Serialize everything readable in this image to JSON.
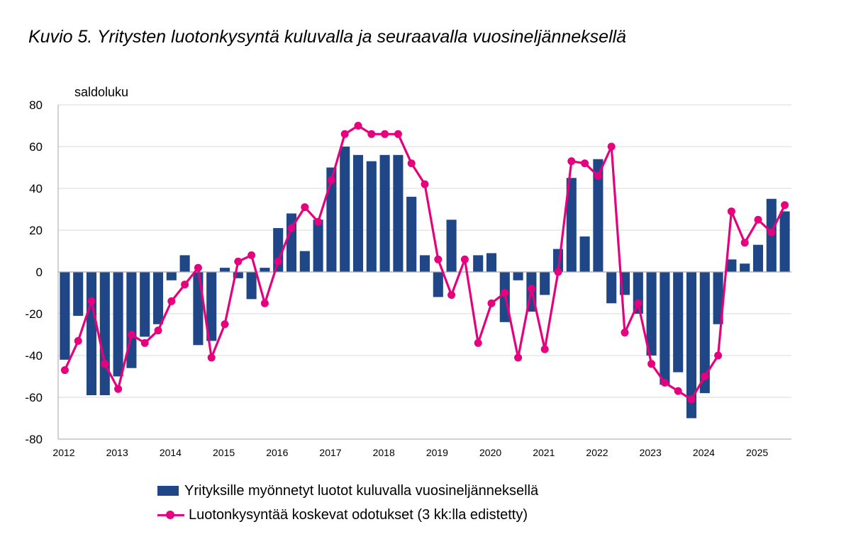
{
  "title": "Kuvio 5. Yritysten luotonkysyntä kuluvalla ja seuraavalla vuosineljänneksellä",
  "colors": {
    "bars": "#1f4788",
    "line": "#e6007e",
    "grid": "#d9d9d9",
    "axis": "#a6a6a6"
  },
  "chart_data": {
    "type": "bar",
    "title": "Kuvio 5. Yritysten luotonkysyntä kuluvalla ja seuraavalla vuosineljänneksellä",
    "ylabel": "saldoluku",
    "xlabel": "",
    "ylim": [
      -80,
      80
    ],
    "yticks": [
      80,
      60,
      40,
      20,
      0,
      -20,
      -40,
      -60,
      -80
    ],
    "year_labels": [
      "2012",
      "2013",
      "2014",
      "2015",
      "2016",
      "2017",
      "2018",
      "2019",
      "2020",
      "2021",
      "2022",
      "2023",
      "2024",
      "2025"
    ],
    "grid": true,
    "legend_position": "bottom",
    "series": [
      {
        "name": "Yrityksille myönnetyt luotot kuluvalla vuosineljänneksellä",
        "type": "bar",
        "values": [
          -42,
          -21,
          -59,
          -59,
          -50,
          -46,
          -31,
          -25,
          -4,
          8,
          -35,
          -33,
          2,
          -3,
          -13,
          2,
          21,
          28,
          10,
          25,
          50,
          60,
          56,
          53,
          56,
          56,
          36,
          8,
          -12,
          25,
          0,
          8,
          9,
          -24,
          -4,
          -19,
          -11,
          11,
          45,
          17,
          54,
          -15,
          -11,
          -20,
          -40,
          -54,
          -48,
          -70,
          -58,
          -25,
          6,
          4,
          13,
          35,
          29
        ]
      },
      {
        "name": "Luotonkysyntää koskevat odotukset (3 kk:lla edistetty)",
        "type": "line",
        "values": [
          -47,
          -33,
          -14,
          -44,
          -56,
          -30,
          -34,
          -28,
          -14,
          -6,
          2,
          -41,
          -25,
          5,
          8,
          -15,
          5,
          21,
          31,
          24,
          44,
          66,
          70,
          66,
          66,
          66,
          52,
          42,
          6,
          -11,
          6,
          -34,
          -15,
          -10,
          -41,
          -8,
          -37,
          0,
          53,
          52,
          46,
          60,
          -29,
          -15,
          -44,
          -53,
          -57,
          -61,
          -50,
          -40,
          29,
          14,
          25,
          19,
          32
        ]
      }
    ]
  }
}
